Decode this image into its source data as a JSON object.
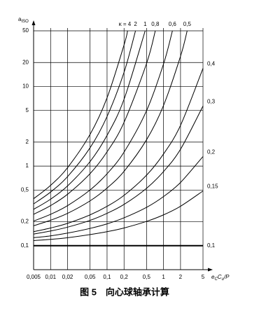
{
  "chart_data": {
    "type": "line",
    "log_x": true,
    "log_y": true,
    "grid": true,
    "color": "#000000",
    "ylabel": {
      "base": "a",
      "sub": "ISO"
    },
    "xlabel": [
      {
        "text": "e"
      },
      {
        "sub": "C"
      },
      {
        "text": "C"
      },
      {
        "sub": "u"
      },
      {
        "text": "/P"
      }
    ],
    "caption": "图 5　向心球轴承计算",
    "xlim": [
      0.005,
      5
    ],
    "ylim": [
      0.05,
      50
    ],
    "xticks": [
      {
        "value": 0.005,
        "label": "0,005"
      },
      {
        "value": 0.01,
        "label": "0,01"
      },
      {
        "value": 0.02,
        "label": "0,02"
      },
      {
        "value": 0.05,
        "label": "0,05"
      },
      {
        "value": 0.1,
        "label": "0,1"
      },
      {
        "value": 0.2,
        "label": "0,2"
      },
      {
        "value": 0.5,
        "label": "0,5"
      },
      1,
      2,
      5
    ],
    "yticks": [
      {
        "value": 0.1,
        "label": "0,1"
      },
      {
        "value": 0.2,
        "label": "0,2"
      },
      {
        "value": 0.5,
        "label": "0,5"
      },
      1,
      2,
      5,
      10,
      20,
      50
    ],
    "series": [
      {
        "name": "κ = 4",
        "x": [
          0.005,
          0.01,
          0.02,
          0.05,
          0.1,
          0.2,
          0.231
        ],
        "values": [
          0.389,
          0.573,
          0.957,
          2.5,
          7.21,
          33.3,
          50
        ]
      },
      {
        "name": "2",
        "x": [
          0.005,
          0.01,
          0.02,
          0.05,
          0.1,
          0.2,
          0.319
        ],
        "values": [
          0.335,
          0.472,
          0.739,
          1.7,
          4.2,
          15.1,
          50
        ]
      },
      {
        "name": "1",
        "x": [
          0.005,
          0.01,
          0.02,
          0.05,
          0.1,
          0.2,
          0.473
        ],
        "values": [
          0.286,
          0.384,
          0.564,
          1.14,
          2.43,
          6.92,
          50
        ]
      },
      {
        "name": "0,8",
        "x": [
          0.005,
          0.01,
          0.02,
          0.05,
          0.1,
          0.2,
          0.5,
          0.715
        ],
        "values": [
          0.248,
          0.319,
          0.443,
          0.804,
          1.51,
          3.55,
          19.4,
          50
        ]
      },
      {
        "name": "0,6",
        "x": [
          0.005,
          0.01,
          0.02,
          0.05,
          0.1,
          0.2,
          0.5,
          1,
          1.437
        ],
        "values": [
          0.204,
          0.248,
          0.319,
          0.501,
          0.801,
          1.5,
          4.96,
          19.2,
          50
        ]
      },
      {
        "name": "0,5",
        "x": [
          0.005,
          0.01,
          0.02,
          0.05,
          0.1,
          0.2,
          0.5,
          1,
          2,
          2.621
        ],
        "values": [
          0.178,
          0.209,
          0.255,
          0.366,
          0.53,
          0.861,
          2.14,
          5.78,
          24,
          50
        ]
      },
      {
        "name": "0,4",
        "x": [
          0.005,
          0.01,
          0.02,
          0.05,
          0.1,
          0.2,
          0.5,
          1,
          2,
          5
        ],
        "values": [
          0.15,
          0.167,
          0.191,
          0.244,
          0.312,
          0.429,
          0.768,
          1.42,
          3.25,
          16.9
        ]
      },
      {
        "name": "0,3",
        "x": [
          0.005,
          0.01,
          0.02,
          0.05,
          0.1,
          0.2,
          0.5,
          1,
          2,
          5
        ],
        "values": [
          0.14,
          0.153,
          0.171,
          0.208,
          0.255,
          0.33,
          0.526,
          0.854,
          1.63,
          5.68
        ]
      },
      {
        "name": "0,2",
        "x": [
          0.005,
          0.01,
          0.02,
          0.05,
          0.1,
          0.2,
          0.5,
          1,
          2,
          5
        ],
        "values": [
          0.126,
          0.133,
          0.144,
          0.165,
          0.188,
          0.224,
          0.303,
          0.414,
          0.623,
          1.32
        ]
      },
      {
        "name": "0,15",
        "x": [
          0.005,
          0.01,
          0.02,
          0.05,
          0.1,
          0.2,
          0.5,
          1,
          2,
          5
        ],
        "values": [
          0.116,
          0.12,
          0.126,
          0.138,
          0.15,
          0.167,
          0.202,
          0.244,
          0.313,
          0.487
        ]
      },
      {
        "name": "0,1",
        "x": [
          0.005,
          0.01,
          0.02,
          0.05,
          0.1,
          0.2,
          0.5,
          1,
          2,
          5
        ],
        "values": [
          0.1,
          0.1,
          0.1,
          0.1,
          0.1,
          0.1,
          0.1,
          0.1,
          0.1,
          0.1
        ]
      }
    ]
  }
}
